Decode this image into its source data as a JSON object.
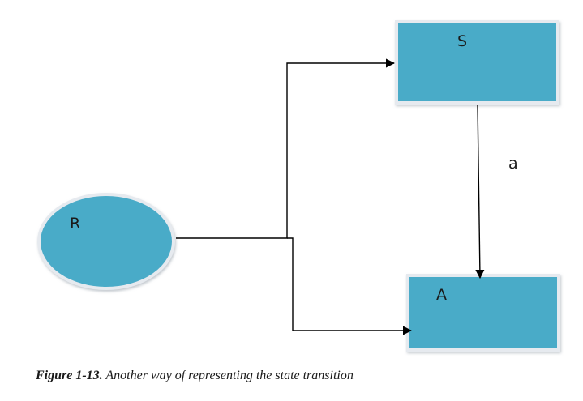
{
  "nodes": {
    "r": {
      "label": "R",
      "shape": "ellipse"
    },
    "s": {
      "label": "S",
      "shape": "rectangle"
    },
    "a": {
      "label": "A",
      "shape": "rectangle"
    }
  },
  "edges": {
    "s_to_a": {
      "label": "a"
    }
  },
  "caption": {
    "number": "Figure 1-13.",
    "text": "Another way of representing the state transition"
  },
  "colors": {
    "node_fill": "#4aabc8",
    "node_border": "#e6eaef",
    "line": "#000000"
  }
}
